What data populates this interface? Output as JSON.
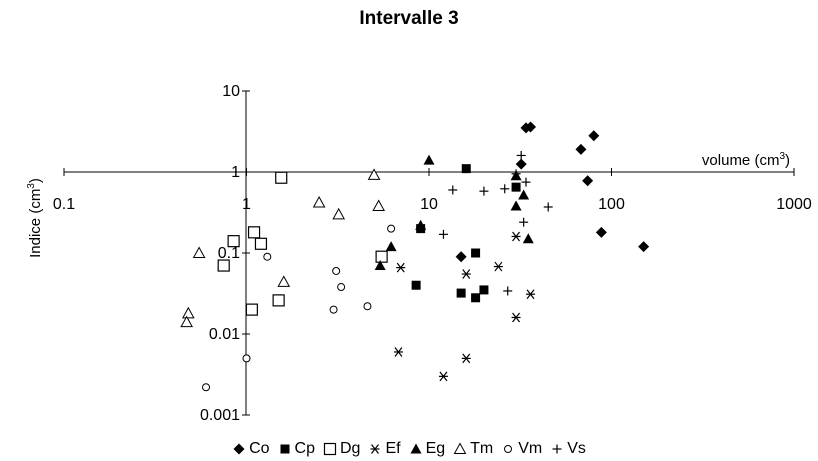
{
  "chart_data": {
    "type": "scatter",
    "title": "Intervalle 3",
    "xlabel": "volume (cm",
    "xlabel_sup": "3",
    "xlabel_close": ")",
    "ylabel": "Indice (cm",
    "ylabel_sup": "3",
    "ylabel_close": ")",
    "x_scale": "log",
    "y_scale": "log",
    "xlim": [
      0.1,
      1000
    ],
    "ylim": [
      0.001,
      10
    ],
    "x_ticks": [
      "0.1",
      "1",
      "10",
      "100",
      "1000"
    ],
    "y_ticks": [
      "0.001",
      "0.01",
      "0.1",
      "1",
      "10"
    ],
    "grid": false,
    "legend_position": "bottom",
    "series": [
      {
        "name": "Co",
        "marker": "diamond-filled",
        "points": [
          [
            36,
            3.6
          ],
          [
            34,
            3.5
          ],
          [
            32,
            1.25
          ],
          [
            68,
            1.9
          ],
          [
            80,
            2.8
          ],
          [
            74,
            0.78
          ],
          [
            88,
            0.18
          ],
          [
            150,
            0.12
          ],
          [
            15,
            0.09
          ]
        ]
      },
      {
        "name": "Cp",
        "marker": "square-filled",
        "points": [
          [
            16,
            1.1
          ],
          [
            30,
            0.65
          ],
          [
            9,
            0.2
          ],
          [
            18,
            0.1
          ],
          [
            8.5,
            0.04
          ],
          [
            15,
            0.032
          ],
          [
            18,
            0.028
          ],
          [
            20,
            0.035
          ]
        ]
      },
      {
        "name": "Dg",
        "marker": "square-open",
        "points": [
          [
            1.55,
            0.85
          ],
          [
            1.1,
            0.18
          ],
          [
            0.85,
            0.14
          ],
          [
            1.2,
            0.13
          ],
          [
            0.75,
            0.07
          ],
          [
            5.5,
            0.09
          ],
          [
            1.5,
            0.026
          ],
          [
            1.07,
            0.02
          ]
        ]
      },
      {
        "name": "Ef",
        "marker": "asterisk",
        "points": [
          [
            30,
            0.16
          ],
          [
            16,
            0.055
          ],
          [
            24,
            0.068
          ],
          [
            7,
            0.066
          ],
          [
            36,
            0.031
          ],
          [
            30,
            0.016
          ],
          [
            6.8,
            0.006
          ],
          [
            16,
            0.005
          ],
          [
            12,
            0.003
          ]
        ]
      },
      {
        "name": "Eg",
        "marker": "triangle-filled",
        "points": [
          [
            10,
            1.4
          ],
          [
            30,
            0.9
          ],
          [
            33,
            0.52
          ],
          [
            30,
            0.38
          ],
          [
            35,
            0.15
          ],
          [
            9,
            0.22
          ],
          [
            6.2,
            0.12
          ],
          [
            5.4,
            0.07
          ]
        ]
      },
      {
        "name": "Tm",
        "marker": "triangle-open",
        "points": [
          [
            5,
            0.92
          ],
          [
            2.5,
            0.42
          ],
          [
            3.2,
            0.3
          ],
          [
            5.3,
            0.38
          ],
          [
            0.55,
            0.1
          ],
          [
            1.6,
            0.044
          ],
          [
            0.48,
            0.018
          ],
          [
            0.47,
            0.014
          ]
        ]
      },
      {
        "name": "Vm",
        "marker": "circle-open",
        "points": [
          [
            1.3,
            0.09
          ],
          [
            6.2,
            0.2
          ],
          [
            3.1,
            0.06
          ],
          [
            3.3,
            0.038
          ],
          [
            4.6,
            0.022
          ],
          [
            3.0,
            0.02
          ],
          [
            1.0,
            0.005
          ],
          [
            0.6,
            0.0022
          ]
        ]
      },
      {
        "name": "Vs",
        "marker": "plus",
        "points": [
          [
            34,
            3.5
          ],
          [
            32,
            1.6
          ],
          [
            30,
            0.95
          ],
          [
            26,
            0.62
          ],
          [
            34,
            0.75
          ],
          [
            20,
            0.58
          ],
          [
            12,
            0.17
          ],
          [
            13.5,
            0.6
          ],
          [
            33,
            0.24
          ],
          [
            45,
            0.37
          ],
          [
            27,
            0.034
          ]
        ]
      }
    ]
  }
}
